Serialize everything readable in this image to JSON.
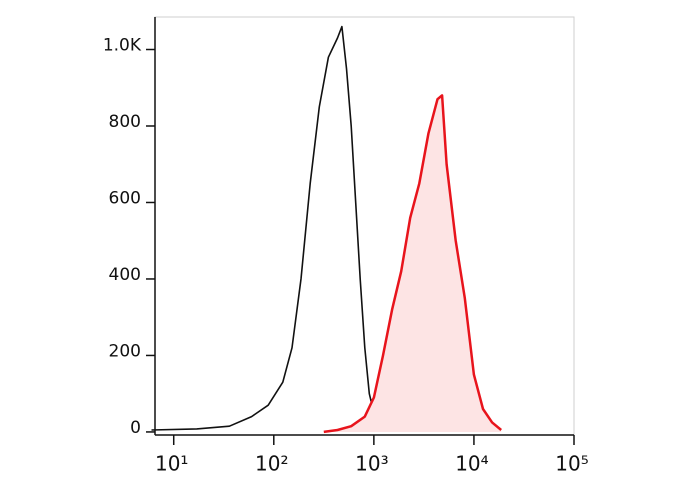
{
  "chart_data": {
    "type": "line",
    "log_x": true,
    "xlim": [
      6.5,
      100000
    ],
    "xticks": [
      {
        "value": 10,
        "label": "10¹"
      },
      {
        "value": 100,
        "label": "10²"
      },
      {
        "value": 1000,
        "label": "10³"
      },
      {
        "value": 10000,
        "label": "10⁴"
      },
      {
        "value": 100000,
        "label": "10⁵"
      }
    ],
    "ylim": [
      -8,
      1085
    ],
    "yticks": [
      0,
      200,
      400,
      600,
      800,
      {
        "value": 1000,
        "label": "1.0K"
      }
    ],
    "series": [
      {
        "color": "#111111",
        "fill": null,
        "x": [
          6,
          17,
          36,
          60,
          88,
          123,
          152,
          187,
          231,
          285,
          351,
          433,
          479,
          533,
          594,
          658,
          731,
          811,
          901,
          1000,
          1233,
          1520
        ],
        "values": [
          5,
          8,
          15,
          40,
          70,
          130,
          220,
          400,
          650,
          850,
          980,
          1030,
          1060,
          950,
          800,
          600,
          400,
          220,
          100,
          50,
          10,
          2
        ]
      },
      {
        "color": "#e8141c",
        "fill": "#fde4e4",
        "x": [
          316,
          433,
          594,
          811,
          1000,
          1233,
          1520,
          1874,
          2310,
          2848,
          3511,
          4329,
          4806,
          5337,
          6579,
          8111,
          10000,
          12328,
          15199,
          18738
        ],
        "values": [
          0,
          5,
          15,
          40,
          90,
          200,
          320,
          420,
          560,
          650,
          780,
          870,
          880,
          700,
          500,
          350,
          150,
          60,
          25,
          5
        ]
      }
    ]
  }
}
